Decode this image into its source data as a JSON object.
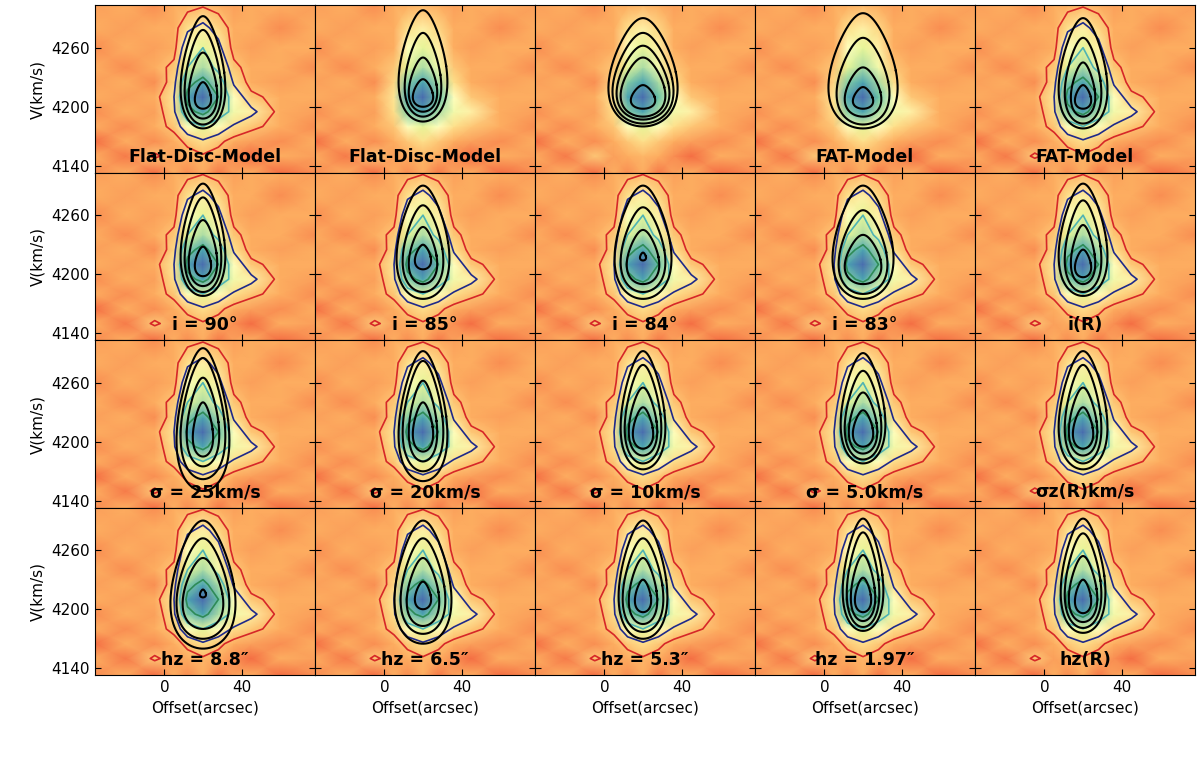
{
  "chart_data": {
    "type": "position-velocity",
    "xlabel": "Offset(arcsec)",
    "ylabel": "V(km/s)",
    "xlim": [
      -36,
      78
    ],
    "ylim": [
      4133,
      4303
    ],
    "xticks": [
      0,
      40
    ],
    "yticks": [
      4140,
      4200,
      4260
    ],
    "map_x": [
      -36,
      -20,
      -5,
      5,
      12,
      20,
      28,
      36,
      45,
      60,
      78
    ],
    "map_v": [
      4133,
      4150,
      4165,
      4180,
      4195,
      4210,
      4225,
      4240,
      4260,
      4280,
      4303
    ],
    "map_values": [
      [
        0.25,
        0.3,
        0.2,
        0.3,
        0.25,
        0.3,
        0.22,
        0.28,
        0.3,
        0.2,
        0.25
      ],
      [
        0.3,
        0.22,
        0.35,
        0.28,
        0.3,
        0.32,
        0.3,
        0.25,
        0.2,
        0.3,
        0.28
      ],
      [
        0.2,
        0.3,
        0.25,
        0.3,
        0.35,
        0.4,
        0.35,
        0.3,
        0.28,
        0.25,
        0.3
      ],
      [
        0.3,
        0.25,
        0.3,
        0.35,
        0.5,
        0.6,
        0.5,
        0.4,
        0.35,
        0.3,
        0.25
      ],
      [
        0.25,
        0.3,
        0.28,
        0.4,
        0.75,
        0.85,
        0.7,
        0.55,
        0.45,
        0.3,
        0.28
      ],
      [
        0.3,
        0.28,
        0.3,
        0.42,
        0.85,
        0.95,
        0.8,
        0.5,
        0.35,
        0.3,
        0.3
      ],
      [
        0.28,
        0.3,
        0.25,
        0.38,
        0.75,
        0.85,
        0.7,
        0.4,
        0.3,
        0.28,
        0.3
      ],
      [
        0.3,
        0.25,
        0.3,
        0.35,
        0.6,
        0.7,
        0.55,
        0.35,
        0.3,
        0.3,
        0.25
      ],
      [
        0.25,
        0.3,
        0.28,
        0.3,
        0.5,
        0.6,
        0.45,
        0.3,
        0.28,
        0.3,
        0.3
      ],
      [
        0.3,
        0.28,
        0.3,
        0.3,
        0.4,
        0.45,
        0.38,
        0.3,
        0.3,
        0.25,
        0.3
      ],
      [
        0.28,
        0.3,
        0.25,
        0.3,
        0.3,
        0.32,
        0.3,
        0.28,
        0.3,
        0.3,
        0.28
      ]
    ],
    "map_range": [
      0,
      1
    ],
    "obs_colors": [
      "#d62728",
      "#1f2a8a",
      "#4fb3b3",
      "#2e8b57"
    ],
    "model_color": "#000000",
    "model_center_offset": 20,
    "panels": [
      {
        "label": "Flat-Disc-Model",
        "obs_levels": [
          0.33,
          0.42,
          0.6,
          0.8
        ],
        "half_width": [
          11,
          9,
          7,
          4
        ],
        "v_low": [
          4178,
          4182,
          4188,
          4198
        ],
        "v_high": [
          4292,
          4278,
          4255,
          4225
        ]
      },
      {
        "label": "Flat-Disc-Model",
        "obs_levels": [],
        "half_width": [
          12,
          9,
          7,
          5
        ],
        "v_low": [
          4185,
          4190,
          4195,
          4200
        ],
        "v_high": [
          4298,
          4275,
          4250,
          4228
        ]
      },
      {
        "label": null,
        "obs_levels": [],
        "half_width": [
          17,
          15,
          13,
          11,
          6
        ],
        "v_low": [
          4180,
          4183,
          4187,
          4190,
          4198
        ],
        "v_high": [
          4290,
          4275,
          4262,
          4250,
          4222
        ]
      },
      {
        "label": "FAT-Model",
        "obs_levels": [],
        "half_width": [
          17,
          13,
          9,
          5
        ],
        "v_low": [
          4178,
          4182,
          4190,
          4198
        ],
        "v_high": [
          4295,
          4270,
          4240,
          4220
        ]
      },
      {
        "label": "FAT-Model",
        "obs_levels": [
          0.33,
          0.42,
          0.6,
          0.8
        ],
        "half_width": [
          12,
          9,
          6,
          4
        ],
        "v_low": [
          4178,
          4183,
          4190,
          4198
        ],
        "v_high": [
          4290,
          4270,
          4245,
          4222
        ]
      },
      {
        "label": "i = 90°",
        "obs_levels": [
          0.33,
          0.42,
          0.6,
          0.8
        ],
        "half_width": [
          11,
          9,
          7,
          4
        ],
        "v_low": [
          4178,
          4182,
          4188,
          4198
        ],
        "v_high": [
          4292,
          4278,
          4255,
          4228
        ]
      },
      {
        "label": "i = 85°",
        "obs_levels": [
          0.33,
          0.42,
          0.6,
          0.8
        ],
        "half_width": [
          13,
          10,
          7,
          4
        ],
        "v_low": [
          4175,
          4182,
          4190,
          4205
        ],
        "v_high": [
          4290,
          4270,
          4248,
          4230
        ]
      },
      {
        "label": "i = 84°",
        "obs_levels": [
          0.33,
          0.42,
          0.6,
          0.8
        ],
        "half_width": [
          14,
          11,
          8,
          1.5
        ],
        "v_low": [
          4175,
          4182,
          4190,
          4214
        ],
        "v_high": [
          4290,
          4268,
          4245,
          4222
        ]
      },
      {
        "label": "i = 83°",
        "obs_levels": [
          0.33,
          0.42,
          0.6,
          0.8
        ],
        "half_width": [
          15,
          12,
          9
        ],
        "v_low": [
          4175,
          4180,
          4190
        ],
        "v_high": [
          4290,
          4265,
          4240
        ]
      },
      {
        "label": "i(R)",
        "obs_levels": [
          0.33,
          0.42,
          0.6,
          0.8
        ],
        "half_width": [
          12,
          9,
          6,
          4
        ],
        "v_low": [
          4178,
          4182,
          4190,
          4197
        ],
        "v_high": [
          4292,
          4275,
          4250,
          4225
        ]
      },
      {
        "label": "σ = 25km/s",
        "obs_levels": [
          0.33,
          0.42,
          0.6,
          0.8
        ],
        "half_width": [
          13,
          11,
          8,
          5
        ],
        "v_low": [
          4150,
          4162,
          4175,
          4185
        ],
        "v_high": [
          4295,
          4285,
          4265,
          4240
        ]
      },
      {
        "label": "σ = 20km/s",
        "obs_levels": [
          0.33,
          0.42,
          0.6,
          0.8
        ],
        "half_width": [
          12,
          10,
          7,
          5
        ],
        "v_low": [
          4160,
          4170,
          4180,
          4190
        ],
        "v_high": [
          4292,
          4282,
          4262,
          4240
        ]
      },
      {
        "label": "σ = 10km/s",
        "obs_levels": [
          0.33,
          0.42,
          0.6,
          0.8
        ],
        "half_width": [
          11,
          9,
          7,
          5
        ],
        "v_low": [
          4172,
          4178,
          4186,
          4193
        ],
        "v_high": [
          4292,
          4278,
          4255,
          4235
        ]
      },
      {
        "label": "σ = 5.0km/s",
        "obs_levels": [
          0.33,
          0.42,
          0.6,
          0.8
        ],
        "half_width": [
          11,
          9,
          7,
          5
        ],
        "v_low": [
          4178,
          4182,
          4188,
          4195
        ],
        "v_high": [
          4290,
          4272,
          4250,
          4232
        ]
      },
      {
        "label": "σz(R)km/s",
        "obs_levels": [
          0.33,
          0.42,
          0.6,
          0.8
        ],
        "half_width": [
          12,
          9,
          7,
          5
        ],
        "v_low": [
          4172,
          4178,
          4186,
          4193
        ],
        "v_high": [
          4292,
          4278,
          4255,
          4235
        ]
      },
      {
        "label": "hz = 8.8″",
        "obs_levels": [
          0.33,
          0.42,
          0.6,
          0.8
        ],
        "half_width": [
          16,
          13,
          10,
          1.5
        ],
        "v_low": [
          4160,
          4170,
          4180,
          4212
        ],
        "v_high": [
          4290,
          4272,
          4252,
          4220
        ]
      },
      {
        "label": "hz = 6.5″",
        "obs_levels": [
          0.33,
          0.42,
          0.6,
          0.8
        ],
        "half_width": [
          14,
          11,
          8,
          4
        ],
        "v_low": [
          4165,
          4175,
          4183,
          4200
        ],
        "v_high": [
          4290,
          4272,
          4252,
          4228
        ]
      },
      {
        "label": "hz = 5.3″",
        "obs_levels": [
          0.33,
          0.42,
          0.6,
          0.8
        ],
        "half_width": [
          12,
          10,
          7,
          4
        ],
        "v_low": [
          4170,
          4177,
          4185,
          4197
        ],
        "v_high": [
          4290,
          4272,
          4252,
          4230
        ]
      },
      {
        "label": "hz = 1.97″",
        "obs_levels": [
          0.33,
          0.42,
          0.6,
          0.8
        ],
        "half_width": [
          10,
          8,
          6,
          4
        ],
        "v_low": [
          4178,
          4182,
          4188,
          4197
        ],
        "v_high": [
          4292,
          4278,
          4255,
          4232
        ]
      },
      {
        "label": "hz(R)",
        "obs_levels": [
          0.33,
          0.42,
          0.6,
          0.8
        ],
        "half_width": [
          11,
          9,
          7,
          4
        ],
        "v_low": [
          4176,
          4181,
          4187,
          4196
        ],
        "v_high": [
          4292,
          4277,
          4254,
          4230
        ]
      }
    ]
  }
}
